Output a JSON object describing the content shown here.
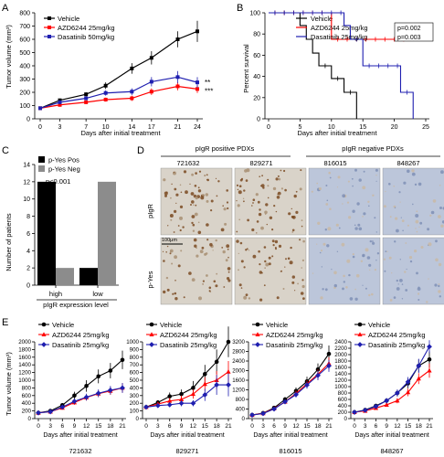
{
  "panel_letters": [
    "A",
    "B",
    "C",
    "D",
    "E"
  ],
  "chart_data": [
    {
      "panel": "A",
      "type": "line",
      "xlabel": "Days after initial treatment",
      "ylabel": "Tumor volume (mm³)",
      "x": [
        0,
        3,
        7,
        10,
        14,
        17,
        21,
        24
      ],
      "xticks": [
        "0",
        "3",
        "7",
        "10",
        "14",
        "17",
        "21",
        "24"
      ],
      "ylim": [
        0,
        800
      ],
      "yticks": [
        "0",
        "100",
        "200",
        "300",
        "400",
        "500",
        "600",
        "700",
        "800"
      ],
      "series": [
        {
          "name": "Vehicle",
          "color": "#000000",
          "marker": "square",
          "values": [
            80,
            140,
            185,
            250,
            380,
            460,
            600,
            660
          ],
          "err": [
            6,
            10,
            15,
            25,
            40,
            50,
            60,
            80
          ]
        },
        {
          "name": "AZD6244 25mg/kg",
          "color": "#ff0000",
          "marker": "square",
          "values": [
            80,
            105,
            125,
            145,
            155,
            205,
            245,
            225
          ],
          "err": [
            5,
            8,
            10,
            15,
            20,
            25,
            30,
            30
          ]
        },
        {
          "name": "Dasatinib 50mg/kg",
          "color": "#1f1fb0",
          "marker": "square",
          "values": [
            80,
            125,
            155,
            195,
            205,
            280,
            315,
            275
          ],
          "err": [
            5,
            10,
            15,
            20,
            25,
            35,
            45,
            40
          ]
        }
      ],
      "annotations": [
        "**",
        "***"
      ]
    },
    {
      "panel": "B",
      "type": "line",
      "xlabel": "Days after initial treatment",
      "ylabel": "Percent survival",
      "xlim": [
        0,
        25
      ],
      "xticks": [
        "0",
        "5",
        "10",
        "15",
        "20",
        "25"
      ],
      "ylim": [
        0,
        100
      ],
      "yticks": [
        "0",
        "20",
        "40",
        "60",
        "80",
        "100"
      ],
      "series": [
        {
          "name": "Vehicle",
          "color": "#000000",
          "steps": [
            [
              0,
              100
            ],
            [
              5,
              100
            ],
            [
              5,
              88
            ],
            [
              6,
              88
            ],
            [
              6,
              75
            ],
            [
              7,
              75
            ],
            [
              7,
              62
            ],
            [
              8,
              62
            ],
            [
              8,
              50
            ],
            [
              10,
              50
            ],
            [
              10,
              38
            ],
            [
              12,
              38
            ],
            [
              12,
              25
            ],
            [
              14,
              25
            ],
            [
              14,
              0
            ]
          ]
        },
        {
          "name": "AZD6244 25mg/kg",
          "color": "#ff0000",
          "steps": [
            [
              0,
              100
            ],
            [
              10,
              100
            ],
            [
              10,
              75
            ],
            [
              23,
              75
            ]
          ]
        },
        {
          "name": "Dasatinib 25mg/kg",
          "color": "#1f1fb0",
          "steps": [
            [
              0,
              100
            ],
            [
              12,
              100
            ],
            [
              12,
              88
            ],
            [
              13,
              88
            ],
            [
              13,
              75
            ],
            [
              15,
              75
            ],
            [
              15,
              50
            ],
            [
              21,
              50
            ],
            [
              21,
              25
            ],
            [
              23,
              25
            ],
            [
              23,
              0
            ]
          ]
        }
      ],
      "pvalues": [
        "p=0.002",
        "p=0.003"
      ]
    },
    {
      "panel": "C",
      "type": "bar",
      "xlabel": "pIgR expression level",
      "ylabel": "Number of patients",
      "categories": [
        "high",
        "low"
      ],
      "ylim": [
        0,
        14
      ],
      "yticks": [
        "0",
        "2",
        "4",
        "6",
        "8",
        "10",
        "12",
        "14"
      ],
      "series": [
        {
          "name": "p-Yes Pos",
          "color": "#000000",
          "values": [
            12,
            2
          ]
        },
        {
          "name": "p-Yes Neg",
          "color": "#8c8c8c",
          "values": [
            2,
            12
          ]
        }
      ],
      "annotation": "p<0.001"
    },
    {
      "panel": "E",
      "type": "line",
      "xlabel": "Days after initial treatment",
      "ylabel": "Tumor volume (mm³)",
      "x": [
        0,
        3,
        6,
        9,
        12,
        15,
        18,
        21
      ],
      "xticks": [
        "0",
        "3",
        "6",
        "9",
        "12",
        "15",
        "18",
        "21"
      ],
      "legend": [
        "Vehicle",
        "AZD6244 25mg/kg",
        "Dasatinib 25mg/kg"
      ],
      "colors": [
        "#000000",
        "#ff0000",
        "#1f1fb0"
      ],
      "subplots": [
        {
          "id": "721632",
          "ylim": [
            0,
            2000
          ],
          "yticks": [
            "0",
            "200",
            "400",
            "600",
            "800",
            "1000",
            "1200",
            "1400",
            "1600",
            "1800",
            "2000"
          ],
          "values": [
            [
              150,
              200,
              350,
              600,
              850,
              1100,
              1250,
              1530
            ],
            [
              150,
              180,
              280,
              420,
              550,
              650,
              720,
              800
            ],
            [
              150,
              180,
              300,
              450,
              560,
              660,
              740,
              800
            ]
          ],
          "err": [
            [
              15,
              25,
              50,
              100,
              150,
              180,
              200,
              240
            ],
            [
              15,
              20,
              40,
              60,
              80,
              90,
              100,
              120
            ],
            [
              15,
              20,
              45,
              70,
              90,
              100,
              110,
              130
            ]
          ]
        },
        {
          "id": "829271",
          "ylim": [
            0,
            1000
          ],
          "yticks": [
            "0",
            "100",
            "200",
            "300",
            "400",
            "500",
            "600",
            "700",
            "800",
            "900",
            "1000"
          ],
          "values": [
            [
              150,
              210,
              290,
              320,
              400,
              580,
              740,
              1000
            ],
            [
              150,
              190,
              230,
              250,
              320,
              450,
              500,
              610
            ],
            [
              150,
              170,
              180,
              200,
              200,
              310,
              440,
              440
            ]
          ],
          "err": [
            [
              15,
              30,
              50,
              60,
              90,
              120,
              160,
              200
            ],
            [
              15,
              30,
              40,
              50,
              60,
              90,
              120,
              140
            ],
            [
              15,
              25,
              30,
              40,
              40,
              80,
              130,
              150
            ]
          ]
        },
        {
          "id": "816015",
          "ylim": [
            0,
            3200
          ],
          "yticks": [
            "0",
            "400",
            "800",
            "1200",
            "1600",
            "2000",
            "2400",
            "2800",
            "3200"
          ],
          "values": [
            [
              150,
              230,
              450,
              800,
              1150,
              1550,
              2050,
              2700
            ],
            [
              150,
              220,
              420,
              700,
              1050,
              1450,
              1850,
              2300
            ],
            [
              150,
              210,
              400,
              700,
              1000,
              1400,
              1800,
              2200
            ]
          ],
          "err": [
            [
              15,
              30,
              60,
              100,
              150,
              200,
              250,
              350
            ],
            [
              15,
              30,
              50,
              80,
              120,
              150,
              200,
              250
            ],
            [
              15,
              30,
              50,
              80,
              120,
              150,
              200,
              250
            ]
          ]
        },
        {
          "id": "848267",
          "ylim": [
            0,
            2400
          ],
          "yticks": [
            "0",
            "200",
            "400",
            "600",
            "800",
            "1000",
            "1200",
            "1400",
            "1600",
            "1800",
            "2000",
            "2200",
            "2400"
          ],
          "values": [
            [
              200,
              270,
              400,
              560,
              800,
              1100,
              1650,
              1850
            ],
            [
              200,
              240,
              330,
              430,
              560,
              820,
              1250,
              1500
            ],
            [
              200,
              260,
              380,
              560,
              800,
              1150,
              1650,
              2250
            ]
          ],
          "err": [
            [
              20,
              40,
              60,
              80,
              100,
              150,
              200,
              250
            ],
            [
              20,
              40,
              50,
              60,
              80,
              120,
              170,
              220
            ],
            [
              20,
              40,
              60,
              80,
              110,
              150,
              220,
              200
            ]
          ]
        }
      ]
    }
  ],
  "panel_d": {
    "group_pos": "pIgR positive PDXs",
    "group_neg": "pIgR negative PDXs",
    "samples": [
      "721632",
      "829271",
      "816015",
      "848267"
    ],
    "rows": [
      "pIgR",
      "p-Yes"
    ],
    "scale_bar": "100μm",
    "tile_colors": {
      "background": "#d9d3c9",
      "positive": "#7a4a22",
      "negative": "#bcc6da"
    }
  }
}
